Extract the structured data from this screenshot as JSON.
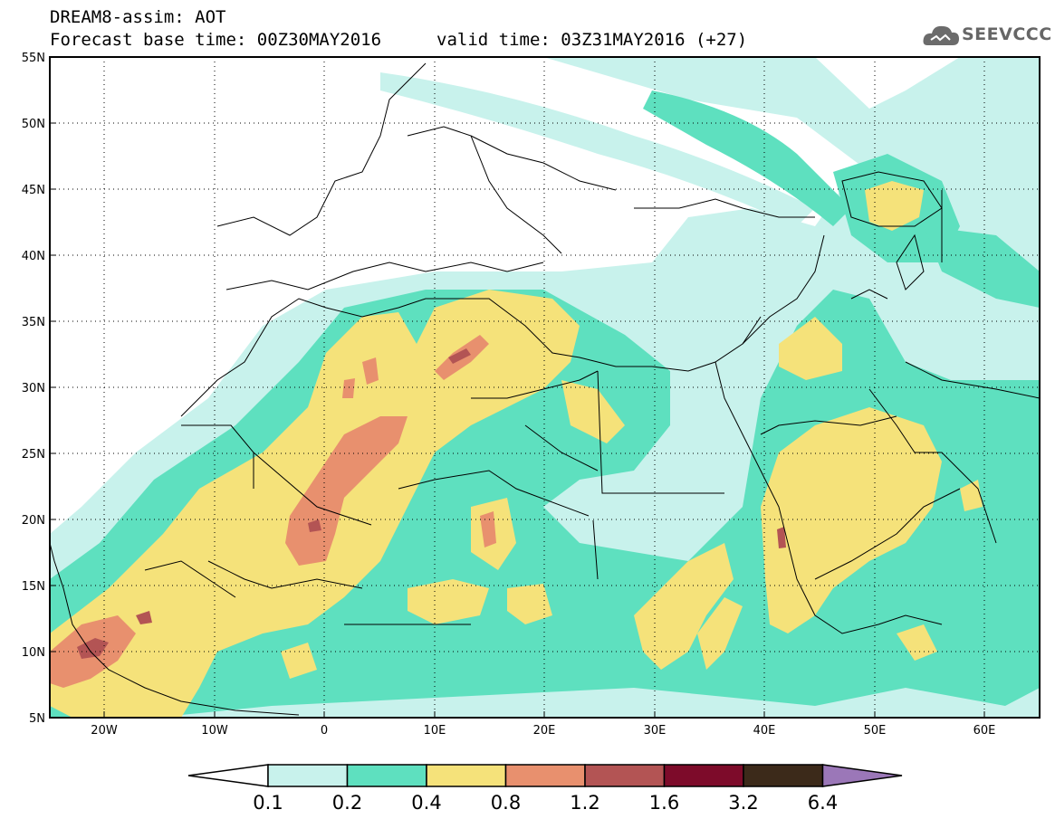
{
  "header": {
    "title": "DREAM8-assim: AOT",
    "base_time": "Forecast base time: 00Z30MAY2016",
    "valid_time": "valid time: 03Z31MAY2016 (+27)"
  },
  "logo": {
    "text": "SEEVCCC",
    "icon": "cloud-icon"
  },
  "map": {
    "lon_range": [
      -25,
      65
    ],
    "lat_range": [
      5,
      55
    ],
    "lat_labels": [
      "55N",
      "50N",
      "45N",
      "40N",
      "35N",
      "30N",
      "25N",
      "20N",
      "15N",
      "10N",
      "5N"
    ],
    "lon_labels": [
      "20W",
      "10W",
      "0",
      "10E",
      "20E",
      "30E",
      "40E",
      "50E",
      "60E"
    ],
    "grid": "dotted"
  },
  "colorbar": {
    "levels": [
      "0.1",
      "0.2",
      "0.4",
      "0.8",
      "1.2",
      "1.6",
      "3.2",
      "6.4"
    ],
    "colors": [
      "#c8f2ec",
      "#5ee0bf",
      "#f5e27a",
      "#e8906e",
      "#b35454",
      "#7d0b2a",
      "#3c2a1a",
      "#9b77b8"
    ],
    "under_color": "#ffffff"
  }
}
